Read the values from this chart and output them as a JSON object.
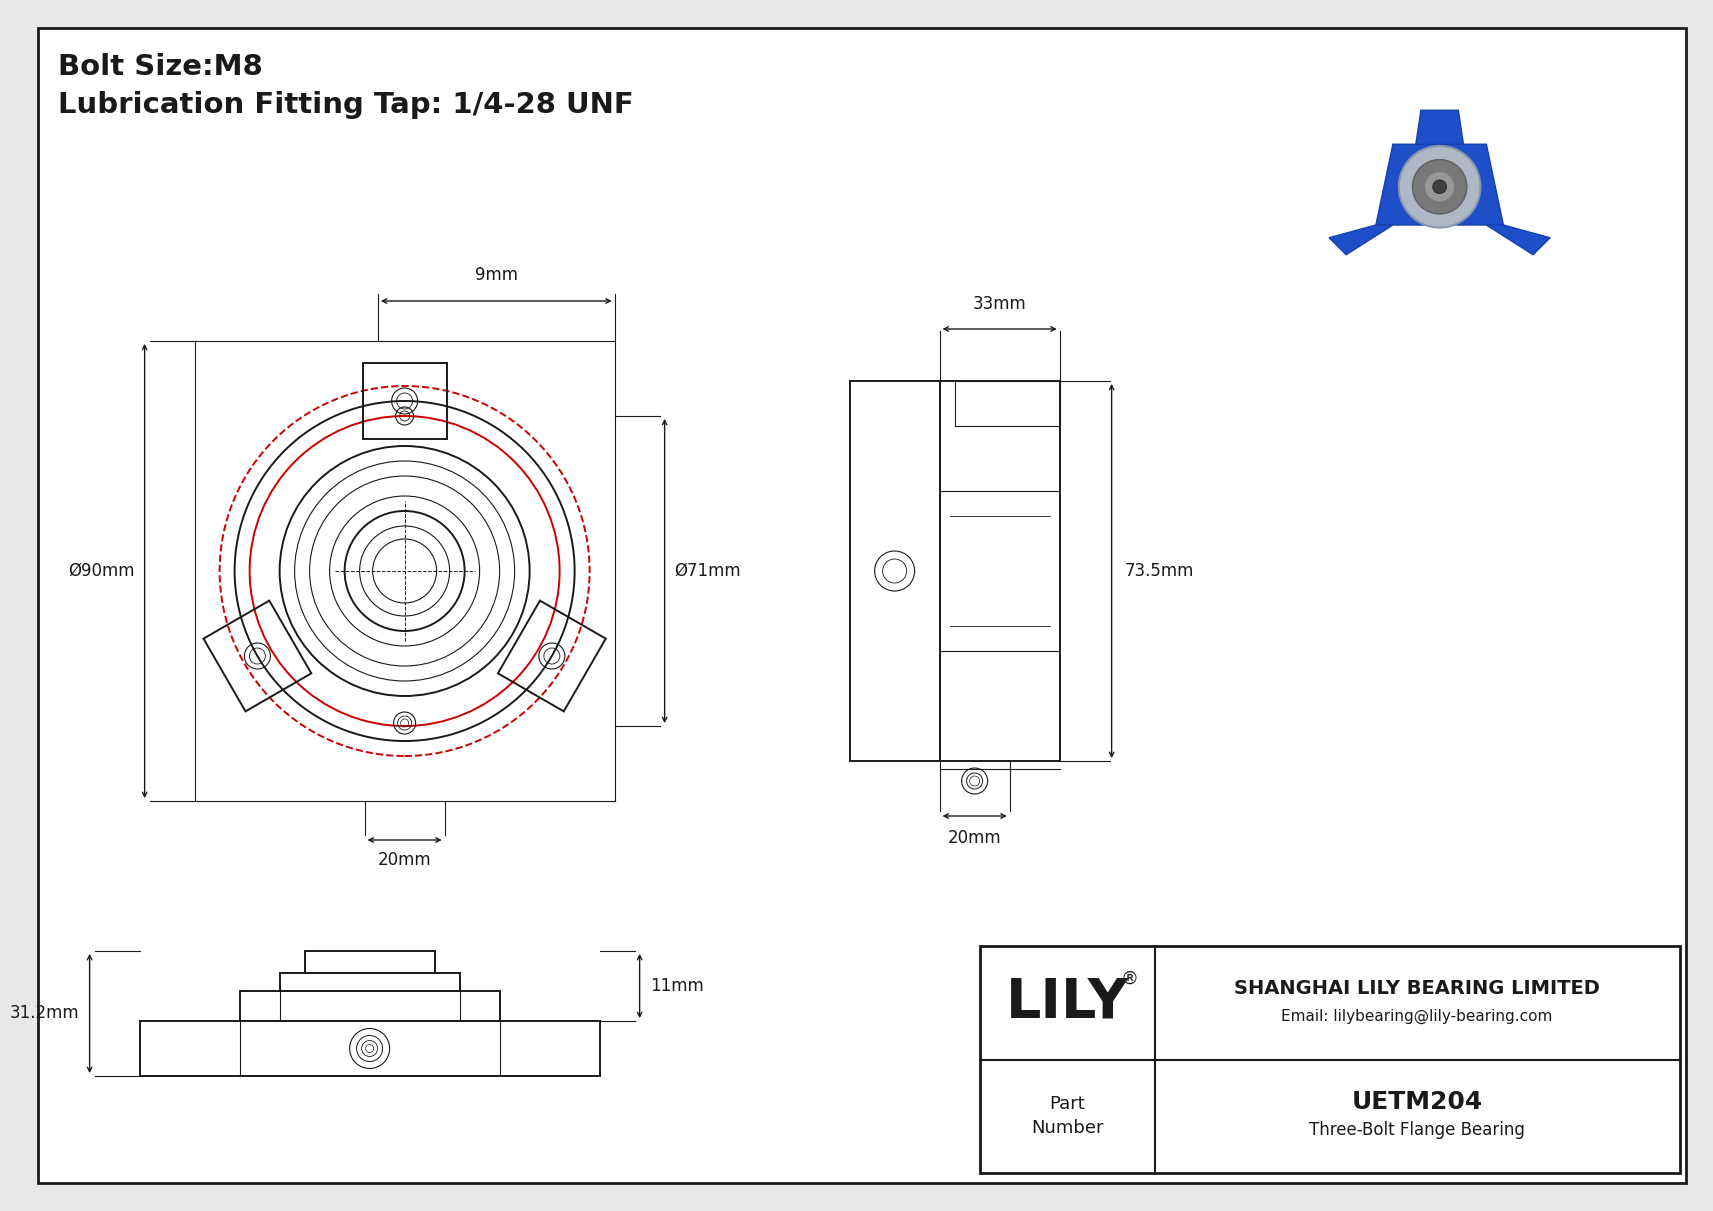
{
  "title_line1": "Bolt Size:M8",
  "title_line2": "Lubrication Fitting Tap: 1/4-28 UNF",
  "bg_color": "#e8e8e8",
  "drawing_bg": "#ffffff",
  "line_color": "#1a1a1a",
  "red_color": "#cc0000",
  "dims": {
    "front_9mm": "9mm",
    "front_90mm": "Ø90mm",
    "front_71mm": "Ø71mm",
    "front_20mm": "20mm",
    "side_33mm": "33mm",
    "side_73_5mm": "73.5mm",
    "side_20mm": "20mm",
    "bottom_31_2mm": "31.2mm",
    "bottom_11mm": "11mm"
  },
  "title_block": {
    "company": "SHANGHAI LILY BEARING LIMITED",
    "email": "Email: lilybearing@lily-bearing.com",
    "logo": "LILY",
    "part_number_label": "Part\nNumber",
    "part_number": "UETM204",
    "description": "Three-Bolt Flange Bearing"
  }
}
